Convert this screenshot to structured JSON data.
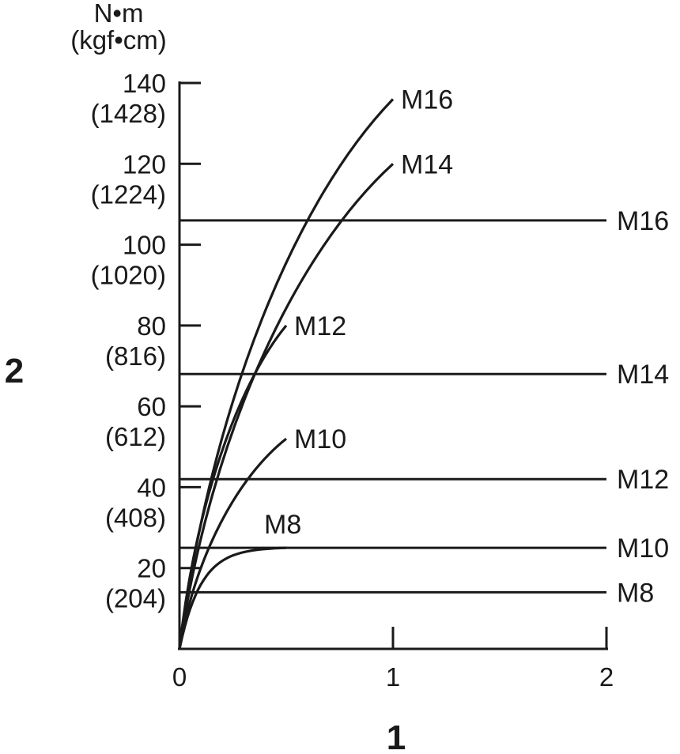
{
  "chart_data": {
    "type": "line",
    "unit_label": "N•m",
    "unit_label_sub": "(kgf•cm)",
    "axis_callouts": {
      "x": "1",
      "y": "2"
    },
    "xlim": [
      0,
      2
    ],
    "ylim": [
      0,
      140
    ],
    "x_ticks": [
      {
        "value": 0,
        "label": "0"
      },
      {
        "value": 1,
        "label": "1"
      },
      {
        "value": 2,
        "label": "2"
      }
    ],
    "y_ticks": [
      {
        "value": 20,
        "label": "20",
        "sub": "(204)"
      },
      {
        "value": 40,
        "label": "40",
        "sub": "(408)"
      },
      {
        "value": 60,
        "label": "60",
        "sub": "(612)"
      },
      {
        "value": 80,
        "label": "80",
        "sub": "(816)"
      },
      {
        "value": 100,
        "label": "100",
        "sub": "(1020)"
      },
      {
        "value": 120,
        "label": "120",
        "sub": "(1224)"
      },
      {
        "value": 140,
        "label": "140",
        "sub": "(1428)"
      }
    ],
    "curves": [
      {
        "name": "M8",
        "x_end": 0.5,
        "y_end": 25,
        "shape": "flatten"
      },
      {
        "name": "M10",
        "x_end": 0.5,
        "y_end": 52,
        "shape": "concave"
      },
      {
        "name": "M12",
        "x_end": 0.5,
        "y_end": 80,
        "shape": "concave"
      },
      {
        "name": "M14",
        "x_end": 1.0,
        "y_end": 120,
        "shape": "concave"
      },
      {
        "name": "M16",
        "x_end": 1.0,
        "y_end": 136,
        "shape": "concave"
      }
    ],
    "limits": [
      {
        "name": "M8",
        "y": 14
      },
      {
        "name": "M10",
        "y": 25
      },
      {
        "name": "M12",
        "y": 42
      },
      {
        "name": "M14",
        "y": 68
      },
      {
        "name": "M16",
        "y": 106
      }
    ]
  }
}
